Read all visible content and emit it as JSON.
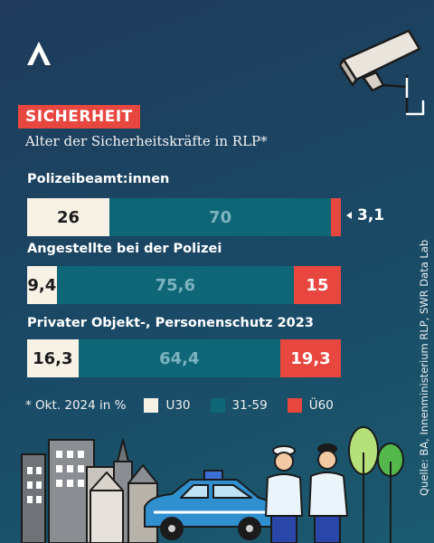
{
  "header": {
    "tag": "SICHERHEIT",
    "subtitle": "Alter der Sicherheitskräfte in RLP*"
  },
  "chart_data": {
    "type": "bar",
    "orientation": "horizontal",
    "stacked": true,
    "normalized_percent": true,
    "categories": [
      "Polizeibeamt:innen",
      "Angestellte bei der Polizei",
      "Privater Objekt-, Personenschutz 2023"
    ],
    "category_labels": [
      "Polizeibeamt:innen",
      "Angestellte bei der Polizei",
      "Privater Objekt-, Personenschutz 2023"
    ],
    "series": [
      {
        "name": "U30",
        "values": [
          26,
          9.4,
          16.3
        ],
        "labels": [
          "26",
          "9,4",
          "16,3"
        ],
        "color": "#f7f1e6"
      },
      {
        "name": "31-59",
        "values": [
          70,
          75.6,
          64.4
        ],
        "labels": [
          "70",
          "75,6",
          "64,4"
        ],
        "color": "#0f6677"
      },
      {
        "name": "Ü60",
        "values": [
          3.1,
          15,
          19.3
        ],
        "labels": [
          "3,1",
          "15",
          "19,3"
        ],
        "color": "#e8473f"
      }
    ]
  },
  "legend": {
    "note": "* Okt. 2024 in %",
    "items": [
      {
        "label": "U30",
        "color": "#f7f1e6"
      },
      {
        "label": "31-59",
        "color": "#0f6677"
      },
      {
        "label": "Ü60",
        "color": "#e8473f"
      }
    ]
  },
  "source": "Quelle: BA, Innenministerium RLP, SWR Data Lab",
  "icons": [
    "swr-logo-icon",
    "security-camera-icon",
    "city-buildings-icon",
    "police-car-icon",
    "police-officer-icon",
    "security-guard-icon",
    "tree-icon"
  ]
}
